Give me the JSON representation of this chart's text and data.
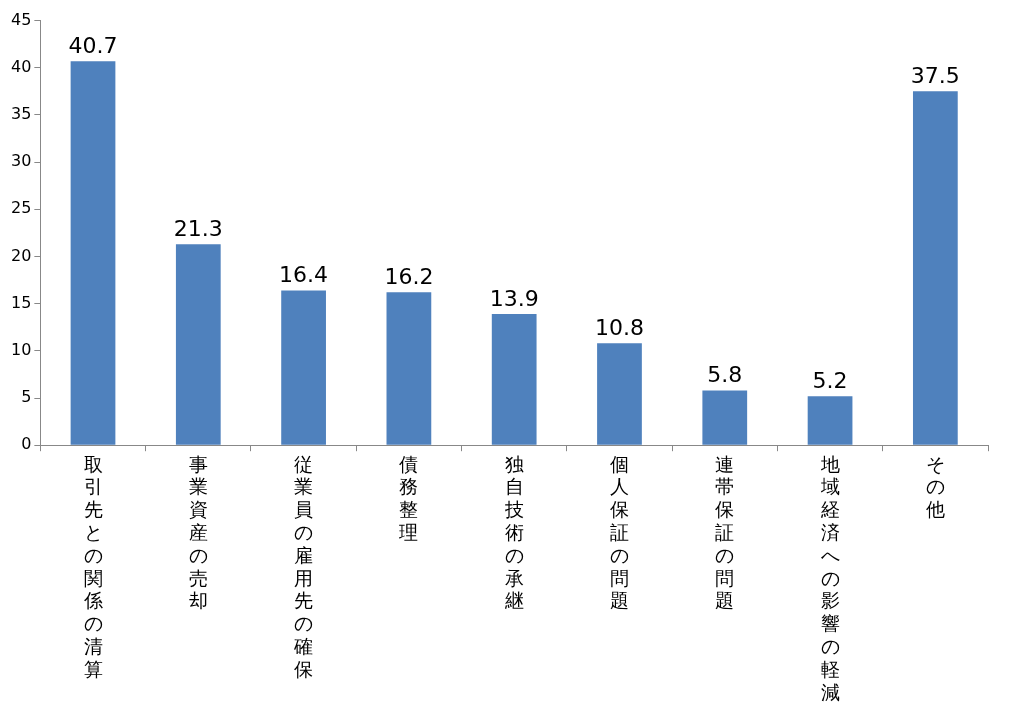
{
  "chart_data": {
    "type": "bar",
    "categories": [
      "取引先との関係の清算",
      "事業資産の売却",
      "従業員の雇用先の確保",
      "債務整理",
      "独自技術の承継",
      "個人保証の問題",
      "連帯保証の問題",
      "地域経済への影響の軽減",
      "その他"
    ],
    "values": [
      40.7,
      21.3,
      16.4,
      16.2,
      13.9,
      10.8,
      5.8,
      5.2,
      37.5
    ],
    "color": "#4f81bd",
    "ylim": [
      0,
      45
    ],
    "yticks": [
      0,
      5,
      10,
      15,
      20,
      25,
      30,
      35,
      40,
      45
    ],
    "grid": false,
    "legend": false,
    "data_labels": true
  }
}
